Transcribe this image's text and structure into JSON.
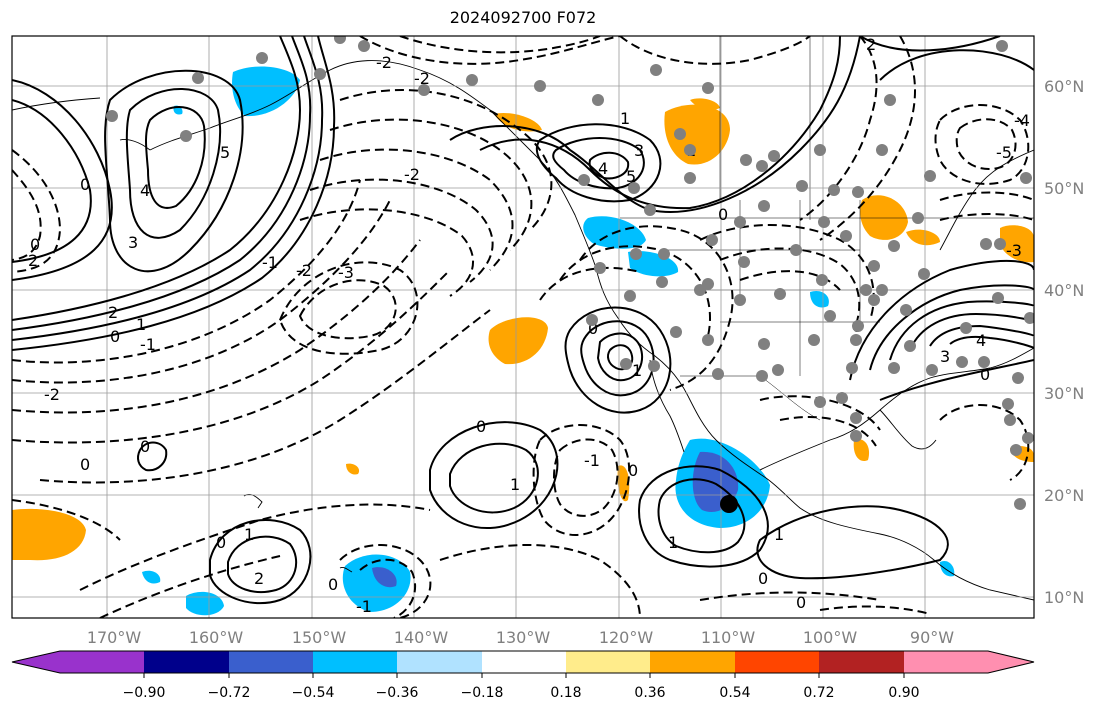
{
  "title": "2024092700 F072",
  "map": {
    "lon_labels": [
      "170°W",
      "160°W",
      "150°W",
      "140°W",
      "130°W",
      "120°W",
      "110°W",
      "100°W",
      "90°W"
    ],
    "lat_labels": [
      "60°N",
      "50°N",
      "40°N",
      "30°N",
      "20°N",
      "10°N"
    ],
    "lon_values": [
      -170,
      -160,
      -150,
      -140,
      -130,
      -120,
      -110,
      -100,
      -90
    ],
    "lat_values": [
      60,
      50,
      40,
      30,
      20,
      10
    ],
    "extent": {
      "lon": [
        -180,
        -80
      ],
      "lat": [
        8,
        65
      ]
    },
    "grid": true,
    "contour_labels": [
      "5",
      "4",
      "3",
      "2",
      "1",
      "0",
      "-1",
      "-2",
      "-3",
      "-4",
      "-5"
    ],
    "marker": {
      "lon": -110,
      "lat": 19,
      "color": "#000000"
    },
    "station_dot_color": "#808080"
  },
  "colorbar": {
    "ticks": [
      "−0.90",
      "−0.72",
      "−0.54",
      "−0.36",
      "−0.18",
      "0.18",
      "0.36",
      "0.54",
      "0.72",
      "0.90"
    ],
    "colors": [
      "#9932CC",
      "#00008B",
      "#3A5FCD",
      "#00BFFF",
      "#B0E2FF",
      "#FFFFFF",
      "#FFEC8B",
      "#FFA500",
      "#FF4500",
      "#B22222",
      "#FF8FB0"
    ]
  }
}
